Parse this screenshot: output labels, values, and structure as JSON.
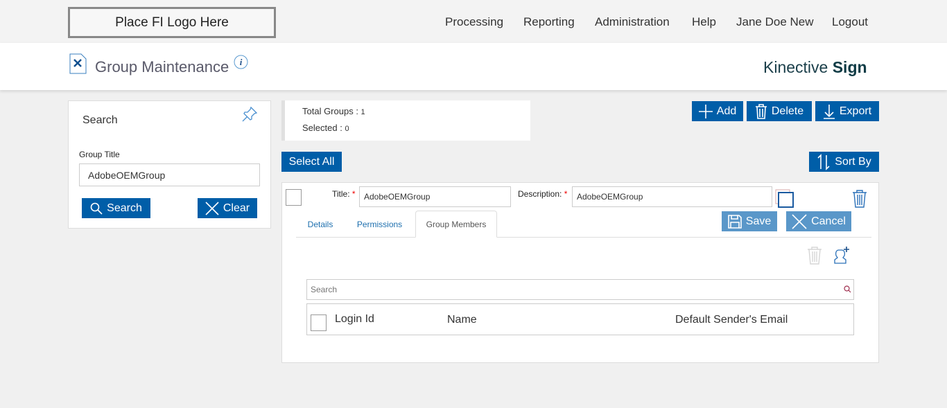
{
  "topbar": {
    "logo": "Place FI Logo Here",
    "nav": [
      "Processing",
      "Reporting",
      "Administration",
      "Help",
      "Jane Doe New",
      "Logout"
    ]
  },
  "header": {
    "title": "Group Maintenance",
    "brand_light": "Kinective ",
    "brand_bold": "Sign"
  },
  "search_panel": {
    "title": "Search",
    "field_label": "Group Title",
    "field_value": "AdobeOEMGroup",
    "search_label": "Search",
    "clear_label": "Clear"
  },
  "summary": {
    "total_label": "Total Groups : ",
    "total": "1",
    "selected_label": "Selected : ",
    "selected": "0"
  },
  "toolbar": {
    "add": "Add",
    "delete": "Delete",
    "export": "Export",
    "select_all": "Select All",
    "sort_by": "Sort By"
  },
  "group": {
    "title_label": "Title:",
    "title_value": "AdobeOEMGroup",
    "desc_label": "Description:",
    "desc_value": "AdobeOEMGroup",
    "required": "*",
    "save": "Save",
    "cancel": "Cancel",
    "tabs": [
      "Details",
      "Permissions",
      "Group Members"
    ],
    "active_tab": "Group Members",
    "members": {
      "search_placeholder": "Search",
      "columns": [
        "Login Id",
        "Name",
        "Default Sender's Email"
      ]
    }
  },
  "colors": {
    "primary": "#005ea8",
    "disabled": "#5a97c9",
    "brand": "#0f3b45"
  }
}
